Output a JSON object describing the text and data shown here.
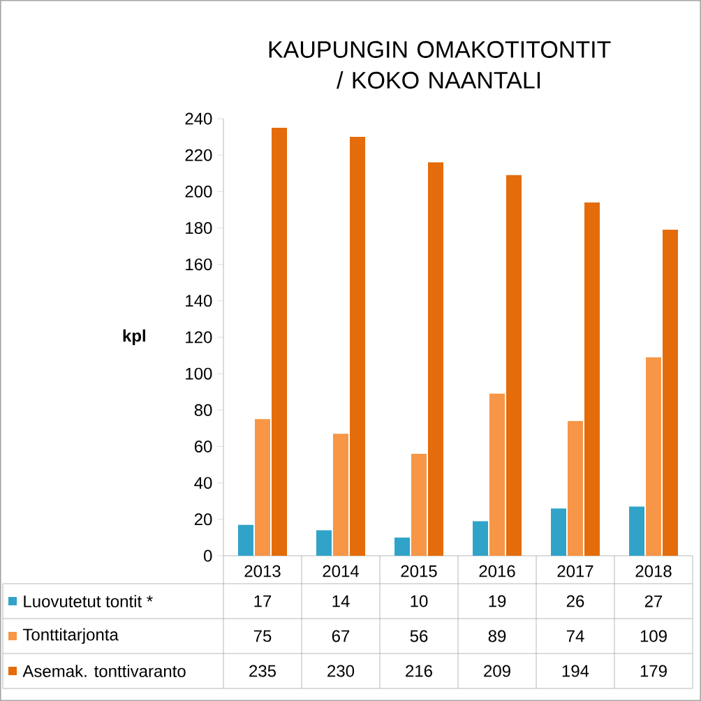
{
  "chart_data": {
    "type": "bar",
    "title": "KAUPUNGIN  OMAKOTITONTIT / KOKO NAANTALI",
    "ylabel": "kpl",
    "categories": [
      "2013",
      "2014",
      "2015",
      "2016",
      "2017",
      "2018"
    ],
    "series": [
      {
        "name": "Luovutetut tontit  *",
        "color": "#31a3c8",
        "values": [
          17,
          14,
          10,
          19,
          26,
          27
        ]
      },
      {
        "name": "Tonttitarjonta",
        "color": "#f79646",
        "values": [
          75,
          67,
          56,
          89,
          74,
          109
        ]
      },
      {
        "name": "Asemak. tonttivaranto",
        "color": "#e46c0a",
        "values": [
          235,
          230,
          216,
          209,
          194,
          179
        ]
      }
    ],
    "ylim": [
      0,
      240
    ],
    "yticks": [
      0,
      20,
      40,
      60,
      80,
      100,
      120,
      140,
      160,
      180,
      200,
      220,
      240
    ],
    "data_labels": true,
    "legend": "bottom left",
    "grid": false
  }
}
